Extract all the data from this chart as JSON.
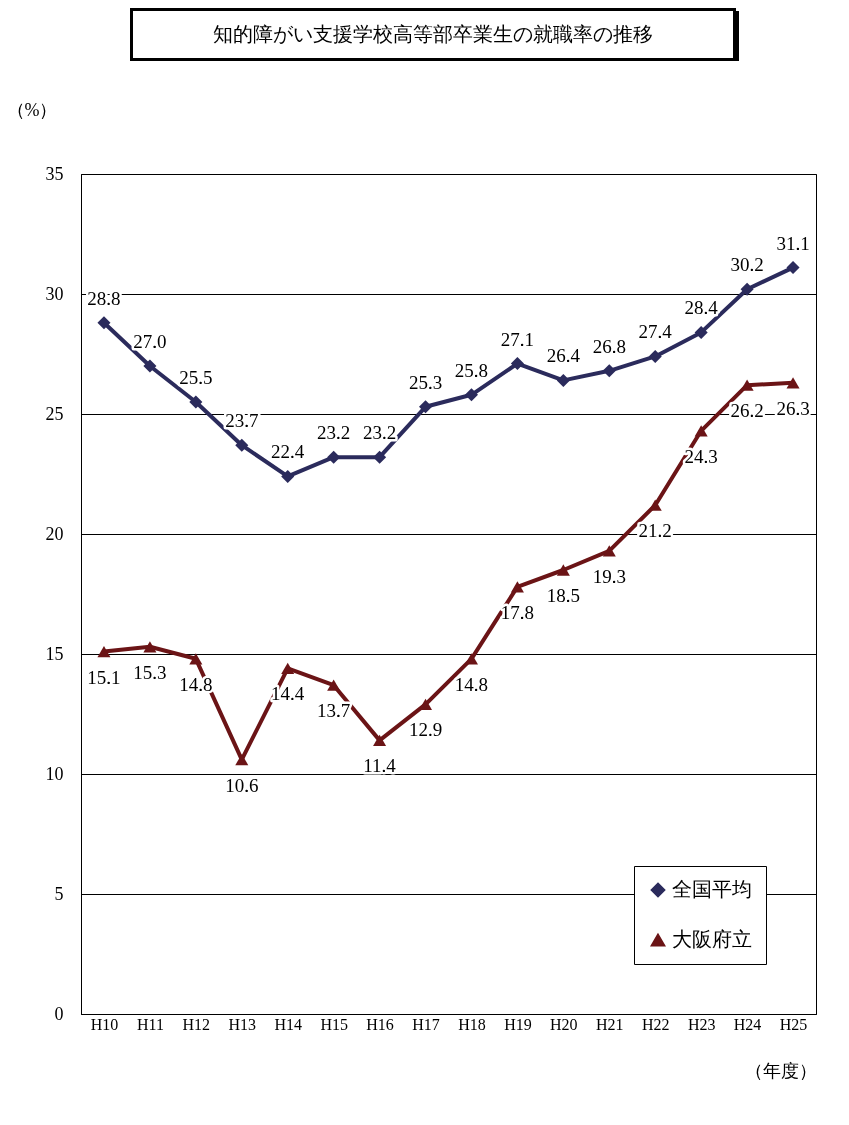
{
  "chart_data": {
    "type": "line",
    "title": "知的障がい支援学校高等部卒業生の就職率の推移",
    "ylabel": "（%）",
    "xlabel": "（年度）",
    "categories": [
      "H10",
      "H11",
      "H12",
      "H13",
      "H14",
      "H15",
      "H16",
      "H17",
      "H18",
      "H19",
      "H20",
      "H21",
      "H22",
      "H23",
      "H24",
      "H25"
    ],
    "series": [
      {
        "name": "全国平均",
        "color": "#2b2b5c",
        "marker": "diamond",
        "values": [
          28.8,
          27.0,
          25.5,
          23.7,
          22.4,
          23.2,
          23.2,
          25.3,
          25.8,
          27.1,
          26.4,
          26.8,
          27.4,
          28.4,
          30.2,
          31.1
        ],
        "value_labels": [
          "28.8",
          "27.0",
          "25.5",
          "23.7",
          "22.4",
          "23.2",
          "23.2",
          "25.3",
          "25.8",
          "27.1",
          "26.4",
          "26.8",
          "27.4",
          "28.4",
          "30.2",
          "31.1"
        ]
      },
      {
        "name": "大阪府立",
        "color": "#6b1416",
        "marker": "triangle",
        "values": [
          15.1,
          15.3,
          14.8,
          10.6,
          14.4,
          13.7,
          11.4,
          12.9,
          14.8,
          17.8,
          18.5,
          19.3,
          21.2,
          24.3,
          26.2,
          26.3
        ],
        "value_labels": [
          "15.1",
          "15.3",
          "14.8",
          "10.6",
          "14.4",
          "13.7",
          "11.4",
          "12.9",
          "14.8",
          "17.8",
          "18.5",
          "19.3",
          "21.2",
          "24.3",
          "26.2",
          "26.3"
        ]
      }
    ],
    "ylim": [
      0,
      35
    ],
    "yticks": [
      0,
      5,
      10,
      15,
      20,
      25,
      30,
      35
    ],
    "grid": "y",
    "legend": "bottom right"
  }
}
